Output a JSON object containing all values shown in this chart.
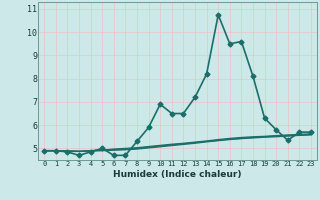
{
  "title": "",
  "xlabel": "Humidex (Indice chaleur)",
  "ylabel": "",
  "bg_color": "#cce8e8",
  "grid_color": "#e8c8c8",
  "line_color": "#1a6e6a",
  "xlim": [
    -0.5,
    23.5
  ],
  "ylim": [
    4.5,
    11.3
  ],
  "yticks": [
    5,
    6,
    7,
    8,
    9,
    10,
    11
  ],
  "xticks": [
    0,
    1,
    2,
    3,
    4,
    5,
    6,
    7,
    8,
    9,
    10,
    11,
    12,
    13,
    14,
    15,
    16,
    17,
    18,
    19,
    20,
    21,
    22,
    23
  ],
  "series": [
    {
      "x": [
        0,
        1,
        2,
        3,
        4,
        5,
        6,
        7,
        8,
        9,
        10,
        11,
        12,
        13,
        14,
        15,
        16,
        17,
        18,
        19,
        20,
        21,
        22,
        23
      ],
      "y": [
        4.9,
        4.9,
        4.85,
        4.7,
        4.85,
        5.0,
        4.7,
        4.7,
        5.3,
        5.9,
        6.9,
        6.5,
        6.5,
        7.2,
        8.2,
        10.75,
        9.5,
        9.6,
        8.1,
        6.3,
        5.8,
        5.35,
        5.7,
        5.7
      ],
      "marker": "D",
      "markersize": 2.5,
      "linewidth": 1.2
    },
    {
      "x": [
        0,
        1,
        2,
        3,
        4,
        5,
        6,
        7,
        8,
        9,
        10,
        11,
        12,
        13,
        14,
        15,
        16,
        17,
        18,
        19,
        20,
        21,
        22,
        23
      ],
      "y": [
        4.9,
        4.9,
        4.87,
        4.87,
        4.9,
        4.93,
        4.95,
        4.97,
        5.0,
        5.05,
        5.1,
        5.15,
        5.2,
        5.25,
        5.3,
        5.35,
        5.4,
        5.43,
        5.47,
        5.5,
        5.53,
        5.55,
        5.57,
        5.6
      ],
      "marker": null,
      "linewidth": 0.9
    },
    {
      "x": [
        0,
        1,
        2,
        3,
        4,
        5,
        6,
        7,
        8,
        9,
        10,
        11,
        12,
        13,
        14,
        15,
        16,
        17,
        18,
        19,
        20,
        21,
        22,
        23
      ],
      "y": [
        4.9,
        4.9,
        4.9,
        4.88,
        4.9,
        4.93,
        4.97,
        5.0,
        5.03,
        5.08,
        5.13,
        5.18,
        5.22,
        5.27,
        5.32,
        5.38,
        5.43,
        5.47,
        5.5,
        5.52,
        5.55,
        5.58,
        5.6,
        5.63
      ],
      "marker": null,
      "linewidth": 0.9
    },
    {
      "x": [
        0,
        1,
        2,
        3,
        4,
        5,
        6,
        7,
        8,
        9,
        10,
        11,
        12,
        13,
        14,
        15,
        16,
        17,
        18,
        19,
        20,
        21,
        22,
        23
      ],
      "y": [
        4.9,
        4.9,
        4.87,
        4.87,
        4.88,
        4.9,
        4.92,
        4.94,
        4.97,
        5.02,
        5.07,
        5.12,
        5.17,
        5.22,
        5.28,
        5.33,
        5.38,
        5.42,
        5.45,
        5.48,
        5.5,
        5.53,
        5.56,
        5.58
      ],
      "marker": null,
      "linewidth": 0.9
    }
  ]
}
